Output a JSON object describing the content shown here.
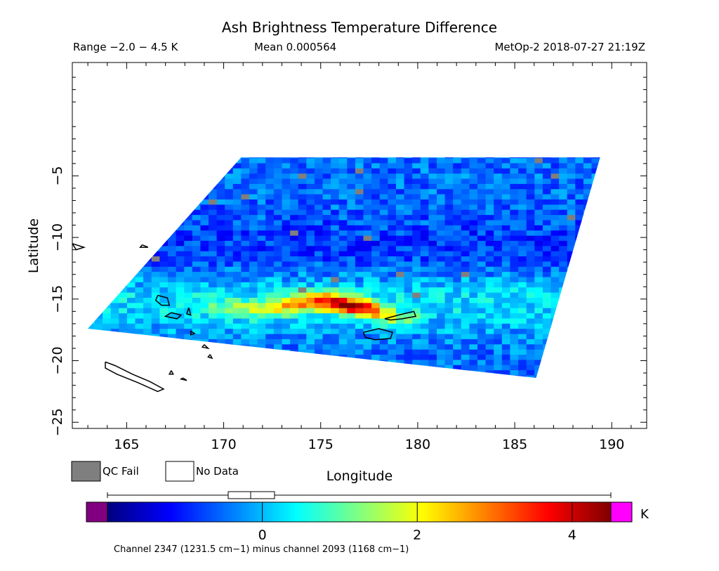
{
  "chart_data": {
    "type": "heatmap",
    "title": "Ash Brightness Temperature Difference",
    "range_label": "Range −2.0 − 4.5 K",
    "mean_label": "Mean 0.000564",
    "source_label": "MetOp-2 2018-07-27 21:19Z",
    "xlabel": "Longitude",
    "ylabel": "Latitude",
    "xlim": [
      162.2,
      191.8
    ],
    "ylim": [
      -25.5,
      4.2
    ],
    "x_ticks": [
      165,
      170,
      175,
      180,
      185,
      190
    ],
    "y_ticks": [
      -5,
      -10,
      -15,
      -20,
      -25
    ],
    "x_tick_labels": [
      "165",
      "170",
      "175",
      "180",
      "185",
      "190"
    ],
    "y_tick_labels": [
      "−5",
      "−10",
      "−15",
      "−20",
      "−25"
    ],
    "swath_corners": [
      [
        170.9,
        -3.5
      ],
      [
        189.4,
        -3.5
      ],
      [
        186.1,
        -21.4
      ],
      [
        163.0,
        -17.4
      ]
    ],
    "legend": {
      "qc_fail_label": "QC Fail",
      "no_data_label": "No Data",
      "qc_fail_color": "#7f7f7f",
      "no_data_color": "#ffffff"
    },
    "colorbar": {
      "min": -2.0,
      "max": 4.5,
      "ticks": [
        0,
        2,
        4
      ],
      "tick_labels": [
        "0",
        "2",
        "4"
      ],
      "unit": "K",
      "under_color": "#800080",
      "over_color": "#ff00ff",
      "colors": [
        "#000080",
        "#0000ff",
        "#0080ff",
        "#00ffff",
        "#80ff80",
        "#ffff00",
        "#ff8000",
        "#ff0000",
        "#800000"
      ],
      "caption": "Channel 2347 (1231.5 cm−1) minus channel 2093 (1168 cm−1)"
    },
    "ash_plume_axis": [
      [
        169.0,
        -15.6
      ],
      [
        171.5,
        -15.8
      ],
      [
        173.5,
        -15.5
      ],
      [
        175.0,
        -15.1
      ],
      [
        176.5,
        -15.5
      ],
      [
        177.8,
        -15.9
      ],
      [
        179.0,
        -16.6
      ]
    ],
    "ash_peak_value": 4.2,
    "background_value": -0.5,
    "coastlines": {
      "vanuatu_north": [
        [
          166.6,
          -14.7
        ],
        [
          167.1,
          -14.9
        ],
        [
          167.2,
          -15.5
        ],
        [
          166.8,
          -15.5
        ],
        [
          166.5,
          -15.1
        ],
        [
          166.6,
          -14.7
        ]
      ],
      "vanuatu_mid": [
        [
          167.3,
          -16.1
        ],
        [
          167.8,
          -16.3
        ],
        [
          167.6,
          -16.6
        ],
        [
          167.0,
          -16.4
        ],
        [
          167.3,
          -16.1
        ]
      ],
      "vanuatu_small": [
        [
          168.2,
          -15.7
        ],
        [
          168.3,
          -16.3
        ],
        [
          168.1,
          -16.2
        ],
        [
          168.2,
          -15.7
        ]
      ],
      "vanuatu_south_1": [
        [
          168.3,
          -17.6
        ],
        [
          168.5,
          -17.8
        ],
        [
          168.3,
          -17.9
        ],
        [
          168.3,
          -17.6
        ]
      ],
      "vanuatu_south_2": [
        [
          169.0,
          -18.7
        ],
        [
          169.2,
          -19.0
        ],
        [
          168.9,
          -18.9
        ],
        [
          169.0,
          -18.7
        ]
      ],
      "vanuatu_south_3": [
        [
          169.3,
          -19.5
        ],
        [
          169.4,
          -19.8
        ],
        [
          169.2,
          -19.7
        ],
        [
          169.3,
          -19.5
        ]
      ],
      "solomon_1": [
        [
          162.2,
          -10.5
        ],
        [
          162.8,
          -10.8
        ],
        [
          162.4,
          -11.0
        ],
        [
          162.2,
          -10.5
        ]
      ],
      "solomon_2": [
        [
          165.8,
          -10.6
        ],
        [
          166.1,
          -10.8
        ],
        [
          165.7,
          -10.8
        ],
        [
          165.8,
          -10.6
        ]
      ],
      "new_caledonia": [
        [
          163.9,
          -20.1
        ],
        [
          164.4,
          -20.4
        ],
        [
          165.3,
          -21.1
        ],
        [
          166.2,
          -21.7
        ],
        [
          166.9,
          -22.3
        ],
        [
          166.6,
          -22.5
        ],
        [
          165.6,
          -21.8
        ],
        [
          164.5,
          -21.1
        ],
        [
          163.9,
          -20.6
        ],
        [
          163.9,
          -20.1
        ]
      ],
      "loyalty_1": [
        [
          167.3,
          -20.8
        ],
        [
          167.4,
          -21.1
        ],
        [
          167.2,
          -21.1
        ],
        [
          167.3,
          -20.8
        ]
      ],
      "loyalty_2": [
        [
          167.9,
          -21.4
        ],
        [
          168.1,
          -21.6
        ],
        [
          167.8,
          -21.5
        ],
        [
          167.9,
          -21.4
        ]
      ],
      "fiji_vanua_levu": [
        [
          178.3,
          -16.6
        ],
        [
          179.0,
          -16.3
        ],
        [
          179.8,
          -16.0
        ],
        [
          179.9,
          -16.4
        ],
        [
          179.2,
          -16.6
        ],
        [
          178.6,
          -16.7
        ],
        [
          178.3,
          -16.6
        ]
      ],
      "fiji_viti_levu": [
        [
          177.2,
          -17.7
        ],
        [
          178.0,
          -17.4
        ],
        [
          178.7,
          -17.7
        ],
        [
          178.6,
          -18.2
        ],
        [
          177.8,
          -18.3
        ],
        [
          177.3,
          -18.1
        ],
        [
          177.2,
          -17.7
        ]
      ]
    }
  }
}
